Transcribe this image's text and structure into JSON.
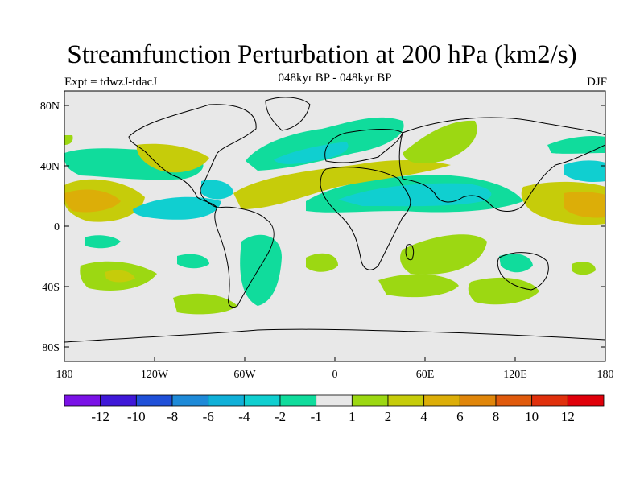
{
  "title": "Streamfunction Perturbation at 200 hPa (km2/s)",
  "subtitle": "048kyr BP - 048kyr BP",
  "left_label": "Expt = tdwzJ-tdacJ",
  "right_label": "DJF",
  "colors": {
    "land_background": "#e8e8e8",
    "colorbar": [
      "#7a12e6",
      "#3f18d8",
      "#1f50d8",
      "#1e8ad8",
      "#10b0d8",
      "#10cfd0",
      "#10dc9c",
      "#e8e8e8",
      "#9cd812",
      "#c6cc0a",
      "#dcae08",
      "#e0860a",
      "#e05a0c",
      "#e0300c",
      "#e0000a"
    ]
  },
  "map": {
    "x_ticks": [
      "180",
      "120W",
      "60W",
      "0",
      "60E",
      "120E",
      "180"
    ],
    "y_ticks": [
      "80N",
      "40N",
      "0",
      "40S",
      "80S"
    ]
  },
  "colorbar": {
    "labels": [
      "-12",
      "-10",
      "-8",
      "-6",
      "-4",
      "-2",
      "-1",
      "1",
      "2",
      "4",
      "6",
      "8",
      "10",
      "12"
    ]
  }
}
